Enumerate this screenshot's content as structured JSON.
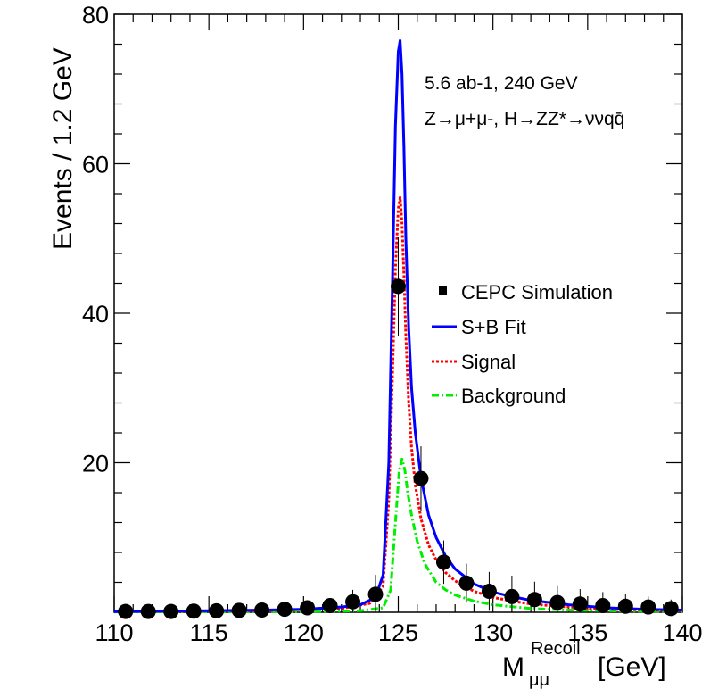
{
  "chart_data": {
    "type": "line",
    "title": "",
    "xlabel": "M",
    "xlabel_sub": "μμ",
    "xlabel_sup": "Recoil",
    "xlabel_unit": "[GeV]",
    "ylabel": "Events / 1.2  GeV",
    "xlim": [
      110,
      140
    ],
    "ylim": [
      0,
      80
    ],
    "x_ticks": [
      110,
      115,
      120,
      125,
      130,
      135,
      140
    ],
    "y_ticks": [
      20,
      40,
      60,
      80
    ],
    "annotation_line1": "5.6 ab-1, 240 GeV",
    "annotation_line2": "Z→μ+μ-, H→ZZ*→ννqq̄",
    "legend": [
      {
        "label": "CEPC Simulation",
        "style": "marker",
        "color": "#000000"
      },
      {
        "label": "S+B Fit",
        "style": "solid",
        "color": "#0000ff"
      },
      {
        "label": "Signal",
        "style": "dotted",
        "color": "#ff0000"
      },
      {
        "label": "Background",
        "style": "dashdot",
        "color": "#00ee00"
      }
    ],
    "points": {
      "x": [
        110.6,
        111.8,
        113.0,
        114.2,
        115.4,
        116.6,
        117.8,
        119.0,
        120.2,
        121.4,
        122.6,
        123.8,
        125.0,
        126.2,
        127.4,
        128.6,
        129.8,
        131.0,
        132.2,
        133.4,
        134.6,
        135.8,
        137.0,
        138.2,
        139.4
      ],
      "y": [
        0.1,
        0.1,
        0.1,
        0.15,
        0.2,
        0.25,
        0.3,
        0.4,
        0.6,
        0.9,
        1.4,
        2.4,
        43.6,
        17.9,
        6.7,
        3.9,
        2.8,
        2.1,
        1.7,
        1.3,
        1.1,
        0.9,
        0.8,
        0.7,
        0.5
      ],
      "err": [
        0.3,
        0.3,
        0.3,
        0.4,
        0.5,
        0.5,
        0.6,
        0.7,
        0.8,
        1.0,
        1.6,
        2.6,
        6.6,
        4.3,
        2.9,
        2.6,
        2.6,
        2.8,
        2.4,
        2.2,
        2.0,
        1.8,
        1.6,
        1.4,
        1.2
      ]
    },
    "series": [
      {
        "name": "S+B Fit",
        "x": [
          110,
          115,
          118,
          120,
          122,
          123,
          123.8,
          124.2,
          124.5,
          124.7,
          124.85,
          125.0,
          125.1,
          125.2,
          125.3,
          125.4,
          125.55,
          125.7,
          125.9,
          126.2,
          126.6,
          127.0,
          127.5,
          128.0,
          129.0,
          130.0,
          131.0,
          132.0,
          134.0,
          136.0,
          138.0,
          140.0
        ],
        "y": [
          0.1,
          0.2,
          0.3,
          0.4,
          0.7,
          1.0,
          2.0,
          5.0,
          20.0,
          45.0,
          65.0,
          75.0,
          76.5,
          72.0,
          62.0,
          50.0,
          38.0,
          30.0,
          24.0,
          18.0,
          13.0,
          10.0,
          7.5,
          5.8,
          3.8,
          2.7,
          2.1,
          1.6,
          1.0,
          0.6,
          0.4,
          0.3
        ]
      },
      {
        "name": "Signal",
        "x": [
          110,
          118,
          122,
          123.5,
          124.2,
          124.5,
          124.7,
          124.85,
          125.0,
          125.1,
          125.2,
          125.3,
          125.4,
          125.55,
          125.7,
          125.9,
          126.2,
          126.6,
          127.0,
          127.5,
          128.0,
          129.0,
          130.0,
          131.0,
          132.0,
          134.0,
          136.0,
          138.0,
          140.0
        ],
        "y": [
          0.1,
          0.2,
          0.5,
          1.2,
          3.5,
          15.0,
          32.0,
          46.0,
          54.0,
          55.5,
          52.0,
          45.0,
          37.0,
          28.0,
          22.0,
          17.0,
          12.5,
          9.0,
          7.0,
          5.3,
          4.2,
          2.8,
          2.0,
          1.5,
          1.1,
          0.7,
          0.4,
          0.3,
          0.2
        ]
      },
      {
        "name": "Background",
        "x": [
          110,
          120,
          123,
          124.2,
          124.6,
          124.85,
          125.05,
          125.2,
          125.35,
          125.5,
          125.7,
          126.0,
          126.4,
          127.0,
          127.5,
          128.0,
          129.0,
          130.0,
          132.0,
          134.0,
          137.0,
          140.0
        ],
        "y": [
          0.05,
          0.1,
          0.2,
          0.6,
          3.0,
          12.0,
          19.0,
          20.5,
          19.0,
          16.0,
          13.0,
          9.5,
          6.5,
          4.0,
          3.0,
          2.3,
          1.5,
          1.0,
          0.5,
          0.3,
          0.15,
          0.1
        ]
      }
    ]
  }
}
